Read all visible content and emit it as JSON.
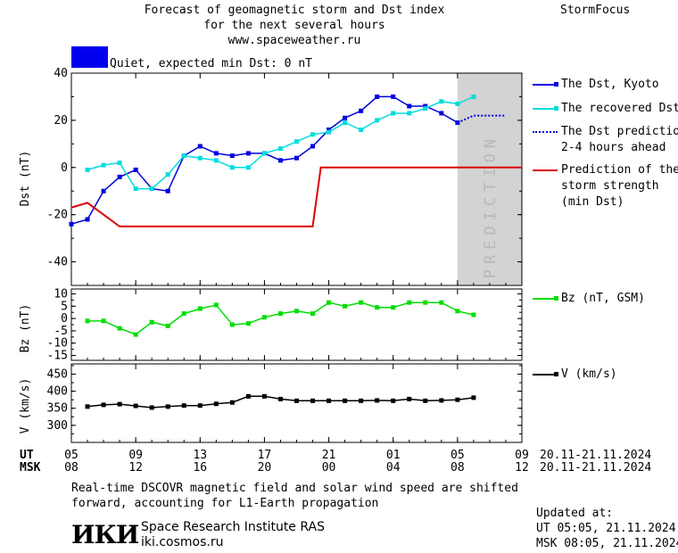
{
  "header": {
    "title_line1": "Forecast of geomagnetic storm and Dst index",
    "title_line2": "for the next several hours",
    "url": "www.spaceweather.ru",
    "brand": "StormFocus",
    "status_text": "Quiet, expected min Dst: 0 nT",
    "status_color": "#0000ee"
  },
  "footer": {
    "note_line1": "Real-time DSCOVR magnetic field and solar wind speed are shifted",
    "note_line2": "forward, accounting for L1-Earth propagation",
    "institute": "Space Research Institute RAS",
    "site": "iki.cosmos.ru",
    "logo_text": "ИКИ",
    "updated_label": "Updated at:",
    "updated_ut": "UT   05:05, 21.11.2024",
    "updated_msk": "MSK 08:05, 21.11.2024"
  },
  "chart_data": [
    {
      "type": "line",
      "ylabel": "Dst (nT)",
      "ylim": [
        -50,
        40
      ],
      "yticks": [
        -40,
        -20,
        0,
        20,
        40
      ],
      "xlim": [
        5,
        33
      ],
      "prediction_band": {
        "x0": 29,
        "x1": 33,
        "label": "PREDICTION",
        "color": "#d3d3d3"
      },
      "series": [
        {
          "name": "The Dst, Kyoto",
          "color": "#0000dd",
          "marker": "square",
          "x": [
            5,
            6,
            7,
            8,
            9,
            10,
            11,
            12,
            13,
            14,
            15,
            16,
            17,
            18,
            19,
            20,
            21,
            22,
            23,
            24,
            25,
            26,
            27,
            28,
            29
          ],
          "values": [
            -24,
            -22,
            -10,
            -4,
            -1,
            -9,
            -10,
            5,
            9,
            6,
            5,
            6,
            6,
            3,
            4,
            9,
            16,
            21,
            24,
            30,
            30,
            26,
            26,
            23,
            19
          ]
        },
        {
          "name": "The recovered Dst",
          "color": "#00dddd",
          "marker": "square",
          "x": [
            6,
            7,
            8,
            9,
            10,
            11,
            12,
            13,
            14,
            15,
            16,
            17,
            18,
            19,
            20,
            21,
            22,
            23,
            24,
            25,
            26,
            27,
            28,
            29,
            30
          ],
          "values": [
            -1,
            1,
            2,
            -9,
            -9,
            -3,
            5,
            4,
            3,
            0,
            0,
            6,
            8,
            11,
            14,
            15,
            19,
            16,
            20,
            23,
            23,
            25,
            28,
            27,
            30
          ]
        },
        {
          "name": "The Dst prediction",
          "name2": "2-4 hours ahead",
          "color": "#0000dd",
          "style": "dotted",
          "x": [
            29,
            30,
            31,
            32
          ],
          "values": [
            19,
            22,
            22,
            22
          ]
        },
        {
          "name": "Prediction of the",
          "name2": "storm strength",
          "name3": "(min Dst)",
          "color": "#dd0000",
          "style": "step",
          "x": [
            5,
            6,
            8,
            20,
            20.5,
            33
          ],
          "values": [
            -17,
            -15,
            -25,
            -25,
            0,
            0
          ]
        }
      ]
    },
    {
      "type": "line",
      "ylabel": "Bz (nT)",
      "ylim": [
        -17,
        12
      ],
      "yticks": [
        10,
        5,
        0,
        -5,
        -10,
        -15
      ],
      "xlim": [
        5,
        33
      ],
      "series": [
        {
          "name": "Bz (nT, GSM)",
          "color": "#00dd00",
          "marker": "square",
          "x": [
            6,
            7,
            8,
            9,
            10,
            11,
            12,
            13,
            14,
            15,
            16,
            17,
            18,
            19,
            20,
            21,
            22,
            23,
            24,
            25,
            26,
            27,
            28,
            29,
            30
          ],
          "values": [
            -1,
            -1,
            -4,
            -6.5,
            -1.5,
            -3,
            2,
            4,
            5.5,
            -2.5,
            -2,
            0.5,
            2,
            3,
            2,
            6.5,
            5,
            6.5,
            4.5,
            4.5,
            6.5,
            6.5,
            6.5,
            3,
            1.5
          ]
        }
      ]
    },
    {
      "type": "line",
      "ylabel": "V (km/s)",
      "ylim": [
        250,
        480
      ],
      "yticks": [
        450,
        400,
        350,
        300
      ],
      "xlim": [
        5,
        33
      ],
      "series": [
        {
          "name": "V (km/s)",
          "color": "#000000",
          "marker": "square",
          "x": [
            6,
            7,
            8,
            9,
            10,
            11,
            12,
            13,
            14,
            15,
            16,
            17,
            18,
            19,
            20,
            21,
            22,
            23,
            24,
            25,
            26,
            27,
            28,
            29,
            30
          ],
          "values": [
            355,
            360,
            362,
            357,
            352,
            355,
            358,
            358,
            363,
            367,
            385,
            385,
            377,
            372,
            372,
            372,
            372,
            372,
            373,
            372,
            377,
            372,
            373,
            375,
            381
          ]
        }
      ]
    }
  ],
  "xaxis": {
    "ut_label": "UT",
    "msk_label": "MSK",
    "ut_ticks": [
      "05",
      "09",
      "13",
      "17",
      "21",
      "01",
      "05",
      "09"
    ],
    "msk_ticks": [
      "08",
      "12",
      "16",
      "20",
      "00",
      "04",
      "08",
      "12"
    ],
    "tick_x": [
      5,
      9,
      13,
      17,
      21,
      25,
      29,
      33
    ],
    "date_ut": "20.11-21.11.2024",
    "date_msk": "20.11-21.11.2024"
  }
}
